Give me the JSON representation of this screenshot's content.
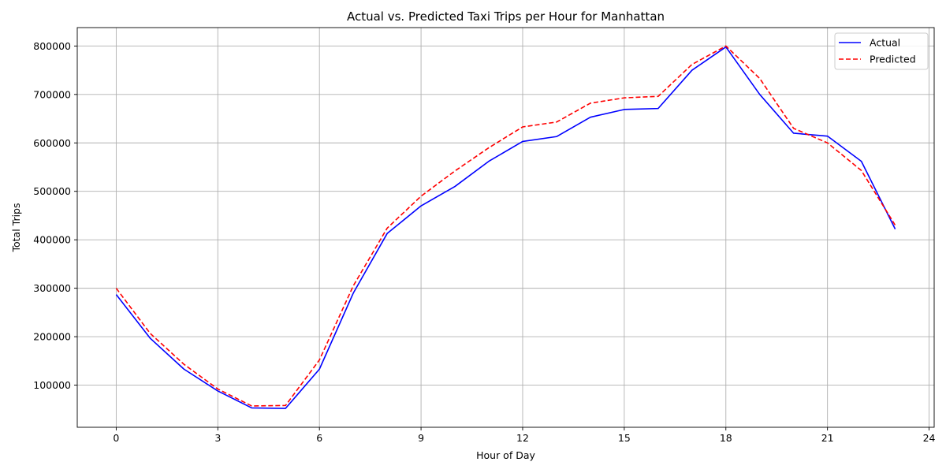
{
  "chart_data": {
    "type": "line",
    "title": "Actual vs. Predicted Taxi Trips per Hour for Manhattan",
    "xlabel": "Hour of Day",
    "ylabel": "Total Trips",
    "x": [
      0,
      1,
      2,
      3,
      4,
      5,
      6,
      7,
      8,
      9,
      10,
      11,
      12,
      13,
      14,
      15,
      16,
      17,
      18,
      19,
      20,
      21,
      22,
      23
    ],
    "xlim": [
      -1.15,
      24.15
    ],
    "ylim": [
      13000,
      838000
    ],
    "x_ticks": [
      0,
      3,
      6,
      9,
      12,
      15,
      18,
      21,
      24
    ],
    "y_ticks": [
      100000,
      200000,
      300000,
      400000,
      500000,
      600000,
      700000,
      800000
    ],
    "grid": true,
    "legend_position": "top-right",
    "series": [
      {
        "name": "Actual",
        "color": "#0000ff",
        "style": "solid",
        "values": [
          287000,
          197000,
          133000,
          88000,
          53000,
          52000,
          133000,
          290000,
          413000,
          470000,
          510000,
          562000,
          603000,
          613000,
          653000,
          669000,
          671000,
          750000,
          798000,
          700000,
          620000,
          614000,
          562000,
          422000
        ]
      },
      {
        "name": "Predicted",
        "color": "#ff0000",
        "style": "dashed",
        "values": [
          300000,
          207000,
          143000,
          92000,
          57000,
          58000,
          152000,
          305000,
          424000,
          490000,
          542000,
          590000,
          633000,
          643000,
          682000,
          693000,
          696000,
          762000,
          800000,
          733000,
          630000,
          600000,
          543000,
          430000
        ]
      }
    ]
  }
}
